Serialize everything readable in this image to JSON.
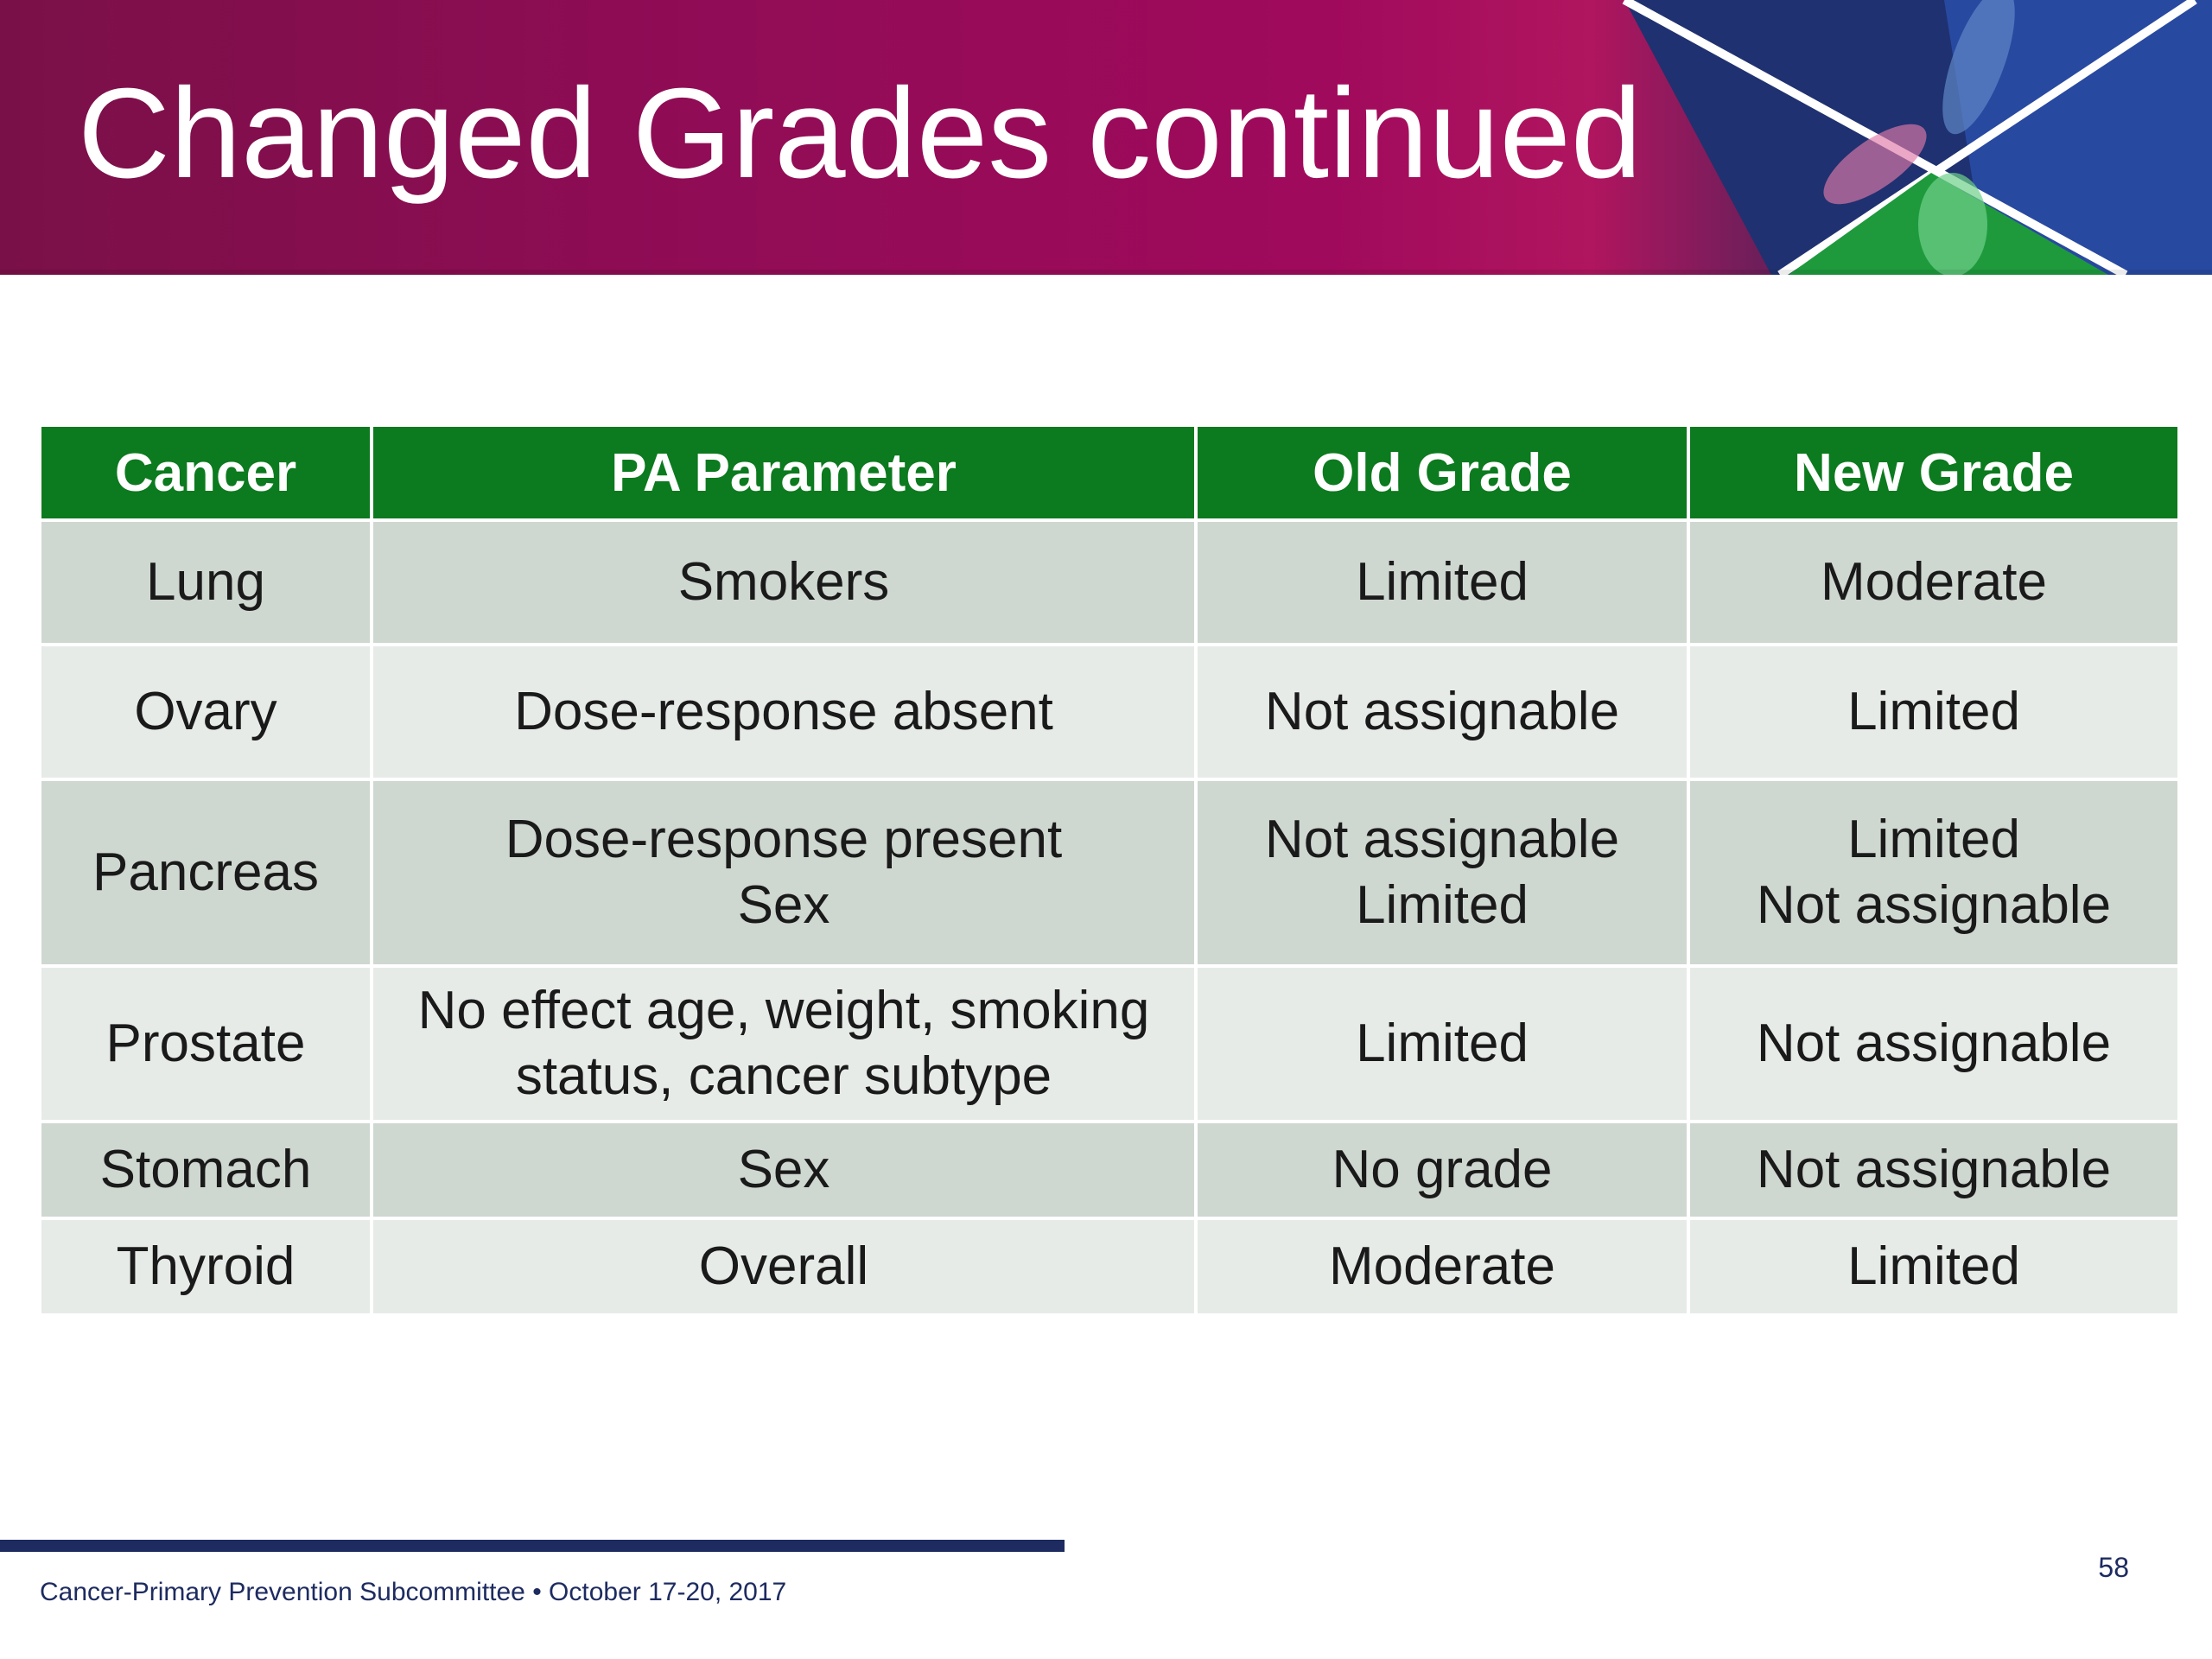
{
  "slide": {
    "title": "Changed Grades continued",
    "page_number": "58",
    "footer": "Cancer-Primary Prevention Subcommittee • October 17-20, 2017"
  },
  "colors": {
    "header_magenta": "#a00a5c",
    "header_navy": "#1c2a5e",
    "table_header_green": "#0c7a1e",
    "row_dark": "#cfd7d1",
    "row_light": "#e7ebe8",
    "footer_navy": "#1d2b60"
  },
  "table": {
    "headers": [
      "Cancer",
      "PA Parameter",
      "Old Grade",
      "New Grade"
    ],
    "rows": [
      {
        "cancer": [
          "Lung"
        ],
        "parameter": [
          "Smokers"
        ],
        "old_grade": [
          "Limited"
        ],
        "new_grade": [
          "Moderate"
        ]
      },
      {
        "cancer": [
          "Ovary"
        ],
        "parameter": [
          "Dose-response absent"
        ],
        "old_grade": [
          "Not assignable"
        ],
        "new_grade": [
          "Limited"
        ]
      },
      {
        "cancer": [
          "Pancreas"
        ],
        "parameter": [
          "Dose-response present",
          "Sex"
        ],
        "old_grade": [
          "Not assignable",
          "Limited"
        ],
        "new_grade": [
          "Limited",
          "Not assignable"
        ]
      },
      {
        "cancer": [
          "Prostate"
        ],
        "parameter": [
          "No effect age, weight, smoking",
          "status, cancer subtype"
        ],
        "old_grade": [
          "Limited"
        ],
        "new_grade": [
          "Not assignable"
        ]
      },
      {
        "cancer": [
          "Stomach"
        ],
        "parameter": [
          "Sex"
        ],
        "old_grade": [
          "No grade"
        ],
        "new_grade": [
          "Not assignable"
        ]
      },
      {
        "cancer": [
          "Thyroid"
        ],
        "parameter": [
          "Overall"
        ],
        "old_grade": [
          "Moderate"
        ],
        "new_grade": [
          "Limited"
        ]
      }
    ]
  }
}
